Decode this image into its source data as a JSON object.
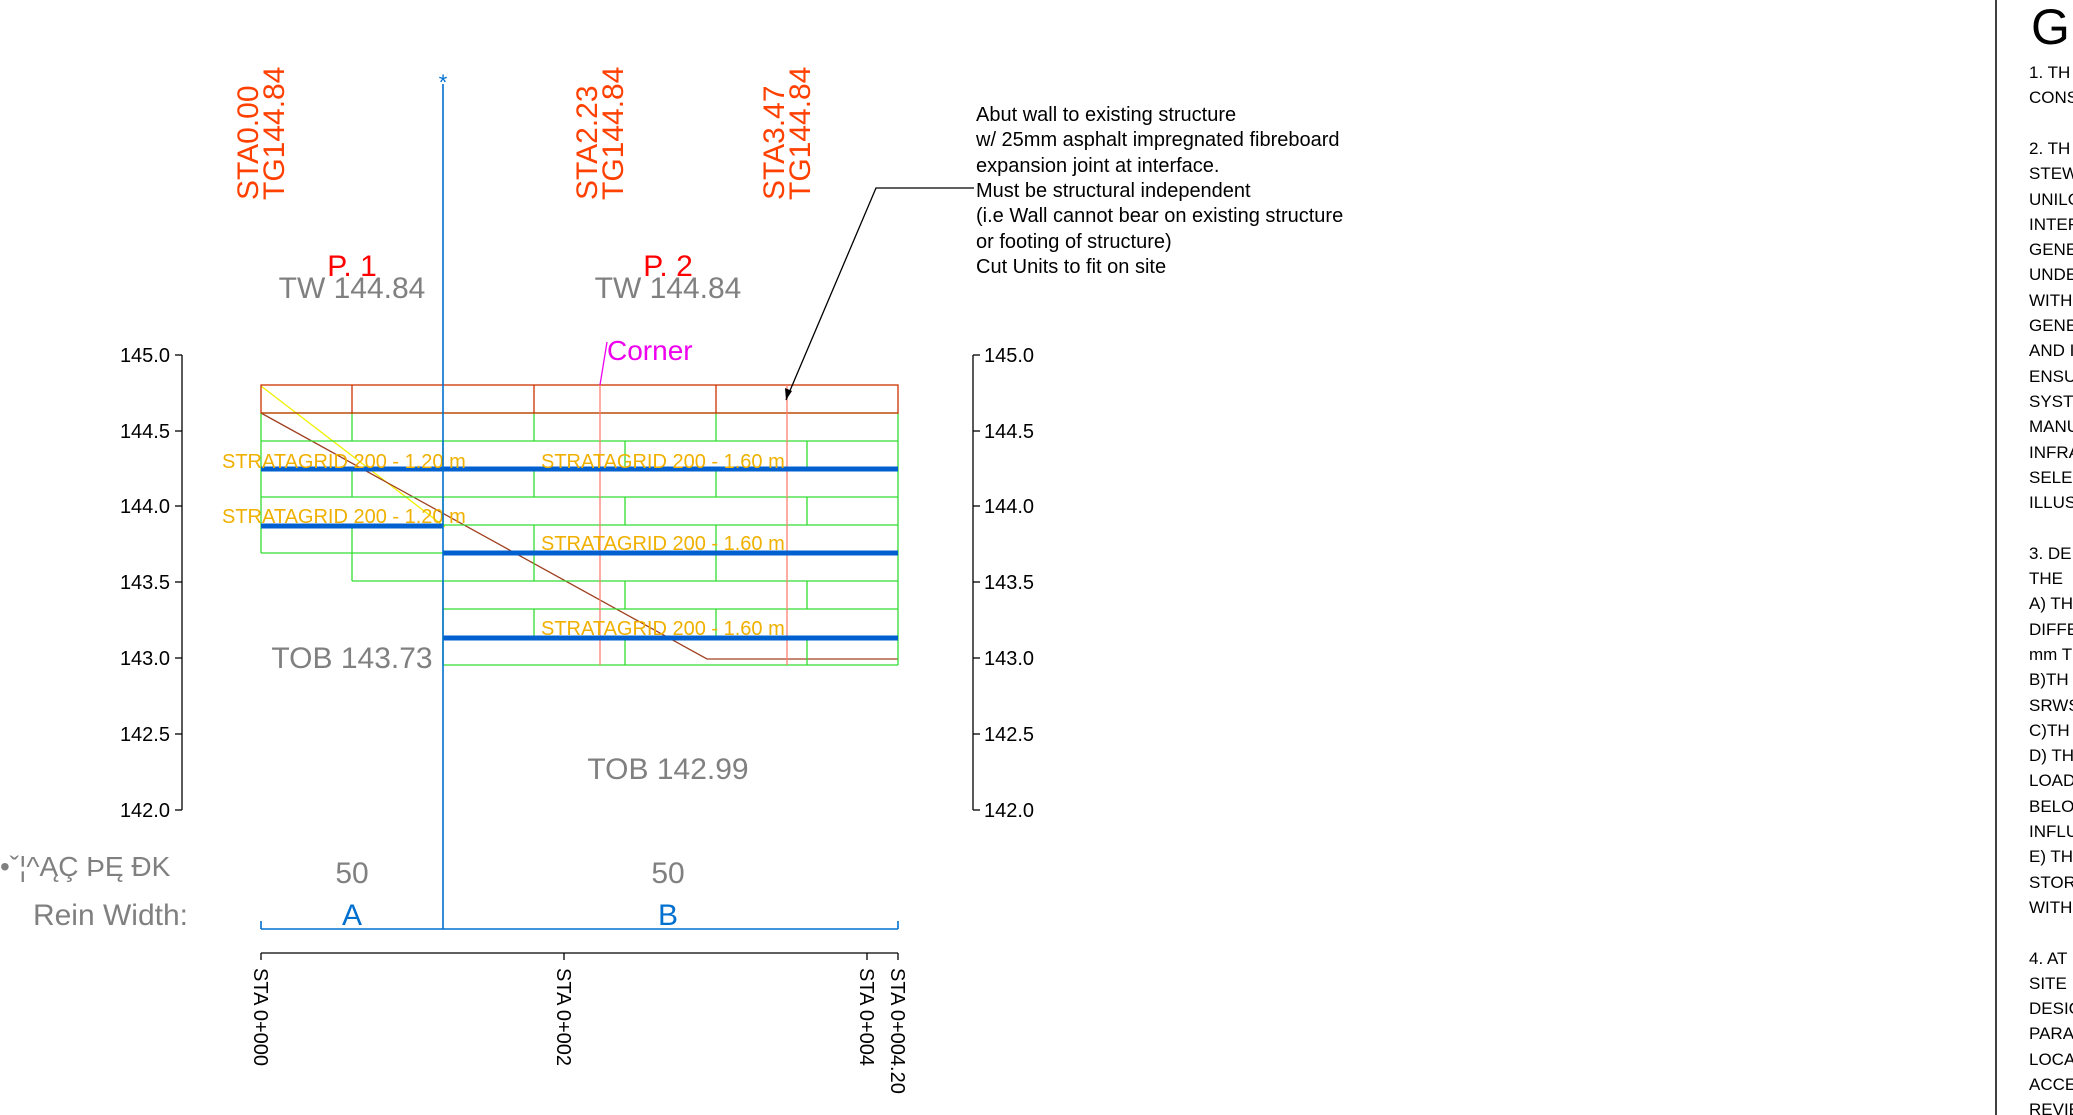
{
  "axis": {
    "left_ticks": [
      "145.0",
      "144.5",
      "144.0",
      "143.5",
      "143.0",
      "142.5",
      "142.0"
    ],
    "right_ticks": [
      "145.0",
      "144.5",
      "144.0",
      "143.5",
      "143.0",
      "142.5",
      "142.0"
    ]
  },
  "station_labels": [
    {
      "sta": "STA0.00",
      "tg": "TG144.84"
    },
    {
      "sta": "STA2.23",
      "tg": "TG144.84"
    },
    {
      "sta": "STA3.47",
      "tg": "TG144.84"
    }
  ],
  "markers": {
    "centerline_symbol": "*",
    "corner_label": "Corner"
  },
  "panels": [
    {
      "label": "P. 1",
      "top_of_wall": "TW 144.84",
      "bottom": "TOB 143.73",
      "width_value": "50",
      "zone": "A"
    },
    {
      "label": "P. 2",
      "top_of_wall": "TW 144.84",
      "bottom": "TOB 142.99",
      "width_value": "50",
      "zone": "B"
    }
  ],
  "grids": [
    "STRATAGRID 200 - 1.20 m",
    "STRATAGRID 200 - 1.20 m",
    "STRATAGRID 200 - 1.60 m",
    "STRATAGRID 200 - 1.60 m",
    "STRATAGRID 200 - 1.60 m"
  ],
  "row_labels": {
    "garbled": "•ˇ¦^ĄÇ ÞĘ ÐK",
    "rein_width": "Rein Width:"
  },
  "bottom_stations": [
    "STA 0+000",
    "STA 0+002",
    "STA 0+004",
    "STA 0+004.20"
  ],
  "annotation": [
    "Abut wall to existing structure",
    "w/ 25mm asphalt impregnated fibreboard",
    "expansion joint at interface.",
    "Must be structural independent",
    "(i.e Wall cannot bear on existing structure",
    "or footing of structure)",
    "Cut Units to fit on site"
  ],
  "notes": {
    "heading": "GE",
    "lines": [
      "1. TH",
      "CONS",
      "",
      "2. TH",
      "STEW",
      "UNILO",
      "INTER",
      "GENE",
      "UNDE",
      "WITH",
      "GENE",
      "AND I",
      "ENSU",
      "SYST",
      "MANU",
      "INFRA",
      "SELE",
      "ILLUS",
      "",
      "3. DE",
      "THE",
      "A) TH",
      "DIFFE",
      "mm T",
      "B)TH",
      "SRWS",
      "C)TH",
      "D) TH",
      "LOAD",
      "BELO",
      "INFLU",
      "E) TH",
      "STOR",
      "WITH",
      "",
      "4. AT",
      "SITE",
      "DESIG",
      "PARA",
      "LOCA",
      "ACCE",
      "REVIE"
    ]
  },
  "colors": {
    "station_text": "#ff4000",
    "panel_label": "#ff0000",
    "gray_text": "#808080",
    "blue": "#0070d0",
    "grid_band": "#0060d0",
    "grid_text": "#f0b000",
    "green": "#33dd33",
    "cap_red": "#cc3300",
    "magenta": "#ee00ee",
    "salmon": "#ff8070",
    "brown": "#a04020",
    "yellow": "#f0f000"
  }
}
